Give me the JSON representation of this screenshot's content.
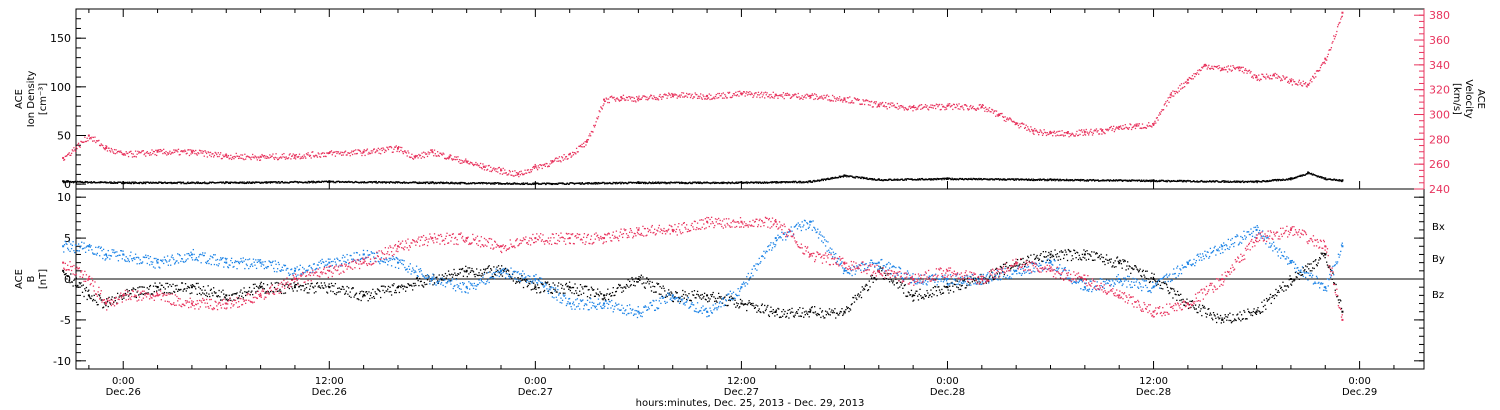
{
  "chart_data": [
    {
      "type": "scatter",
      "panel": "top",
      "ylabel_left": [
        "ACE",
        "Ion Density",
        "[cm⁻³]"
      ],
      "ylabel_right": [
        "ACE",
        "Velocity",
        "[km/s]"
      ],
      "ylim_left": [
        -5,
        180
      ],
      "yticks_left": [
        "0",
        "50",
        "100",
        "150"
      ],
      "ylim_right": [
        240,
        385
      ],
      "yticks_right": [
        "240",
        "260",
        "280",
        "300",
        "320",
        "340",
        "360",
        "380"
      ],
      "series": [
        {
          "axis": "right",
          "color": "#e8345e",
          "x": [
            -3.5,
            -2,
            -1,
            0,
            2,
            4,
            6,
            8,
            10,
            12,
            14,
            16,
            17,
            18,
            19,
            20,
            21,
            22,
            23,
            24,
            25,
            26,
            27,
            28,
            29,
            30,
            32,
            34,
            36,
            38,
            40,
            42,
            44,
            46,
            48,
            50,
            51,
            52,
            53,
            54,
            55,
            56,
            57,
            58,
            59,
            60,
            61,
            62,
            63,
            64,
            65,
            66,
            67,
            68,
            69,
            70,
            71
          ],
          "y": [
            265,
            283,
            273,
            268,
            270,
            270,
            267,
            266,
            267,
            269,
            270,
            273,
            266,
            270,
            266,
            262,
            258,
            255,
            252,
            258,
            262,
            268,
            278,
            312,
            314,
            313,
            316,
            315,
            317,
            316,
            315,
            313,
            308,
            306,
            307,
            306,
            300,
            293,
            287,
            285,
            285,
            286,
            287,
            290,
            291,
            292,
            316,
            328,
            340,
            337,
            338,
            330,
            332,
            327,
            324,
            345,
            382
          ]
        },
        {
          "axis": "left",
          "color": "#000000",
          "x": [
            -3.5,
            0,
            6,
            12,
            18,
            24,
            30,
            36,
            40,
            42,
            44,
            48,
            54,
            60,
            66,
            68,
            69,
            70,
            71
          ],
          "y": [
            3,
            2,
            2,
            3,
            2,
            1,
            2,
            2,
            3,
            9,
            5,
            6,
            5,
            4,
            3,
            6,
            12,
            6,
            4
          ]
        }
      ]
    },
    {
      "type": "scatter",
      "panel": "bottom",
      "ylabel_left": [
        "ACE",
        "B",
        "[nT]"
      ],
      "ylim": [
        -11,
        11
      ],
      "yticks": [
        "-10",
        "-5",
        "0",
        "5",
        "10"
      ],
      "legend_labels": [
        "Bx",
        "By",
        "Bz"
      ],
      "series": [
        {
          "name": "Bx",
          "color": "#000000",
          "x": [
            -3.5,
            -2,
            -1,
            0,
            2,
            4,
            6,
            8,
            10,
            12,
            14,
            16,
            18,
            20,
            22,
            24,
            26,
            28,
            30,
            32,
            34,
            36,
            38,
            40,
            42,
            44,
            46,
            48,
            50,
            52,
            54,
            56,
            58,
            60,
            62,
            64,
            66,
            68,
            70,
            71
          ],
          "y": [
            1,
            -2,
            -3,
            -2,
            -1,
            -1,
            -2,
            -1,
            -1,
            -1,
            -2,
            -1,
            0,
            1,
            1,
            -1,
            -1,
            -2,
            0,
            -2,
            -2,
            -3,
            -4,
            -4,
            -4,
            1,
            -2,
            -1,
            0,
            2,
            3,
            3,
            2,
            0,
            -3,
            -5,
            -4,
            0,
            3,
            -4
          ]
        },
        {
          "name": "By",
          "color": "#1a82e6",
          "x": [
            -3.5,
            -2,
            -1,
            0,
            2,
            4,
            6,
            8,
            10,
            12,
            14,
            16,
            18,
            20,
            22,
            24,
            26,
            28,
            30,
            32,
            34,
            36,
            38,
            40,
            42,
            44,
            46,
            48,
            50,
            52,
            54,
            56,
            58,
            60,
            62,
            64,
            66,
            68,
            70,
            71
          ],
          "y": [
            4,
            4,
            3,
            3,
            2,
            3,
            2,
            2,
            1,
            2,
            3,
            2,
            0,
            -1,
            1,
            0,
            -3,
            -3,
            -4,
            -2,
            -4,
            -1,
            5,
            7,
            1,
            2,
            0,
            0,
            0,
            1,
            2,
            -1,
            0,
            -1,
            2,
            4,
            6,
            2,
            -1,
            4
          ]
        },
        {
          "name": "Bz",
          "color": "#e8345e",
          "x": [
            -3.5,
            -2,
            -1,
            0,
            2,
            4,
            6,
            8,
            10,
            12,
            14,
            16,
            18,
            20,
            22,
            24,
            26,
            28,
            30,
            32,
            34,
            36,
            38,
            40,
            42,
            44,
            46,
            48,
            50,
            52,
            54,
            56,
            58,
            60,
            62,
            64,
            66,
            68,
            70,
            71
          ],
          "y": [
            2,
            0,
            -3,
            -2,
            -2,
            -3,
            -3,
            -2,
            0,
            1,
            2,
            4,
            5,
            5,
            4,
            5,
            5,
            5,
            6,
            6,
            7,
            7,
            7,
            3,
            2,
            1,
            0,
            1,
            0,
            2,
            1,
            0,
            -2,
            -4,
            -3,
            0,
            5,
            6,
            4,
            -5
          ]
        }
      ]
    }
  ],
  "x_axis": {
    "ticks": [
      {
        "t": 0,
        "time": "0:00",
        "date": "Dec.26"
      },
      {
        "t": 12,
        "time": "12:00",
        "date": "Dec.26"
      },
      {
        "t": 24,
        "time": "0:00",
        "date": "Dec.27"
      },
      {
        "t": 36,
        "time": "12:00",
        "date": "Dec.27"
      },
      {
        "t": 48,
        "time": "0:00",
        "date": "Dec.28"
      },
      {
        "t": 60,
        "time": "12:00",
        "date": "Dec.28"
      },
      {
        "t": 72,
        "time": "0:00",
        "date": "Dec.29"
      }
    ],
    "xlim": [
      -2.75,
      75.75
    ],
    "label": "hours:minutes, Dec. 25, 2013 - Dec. 29, 2013"
  }
}
